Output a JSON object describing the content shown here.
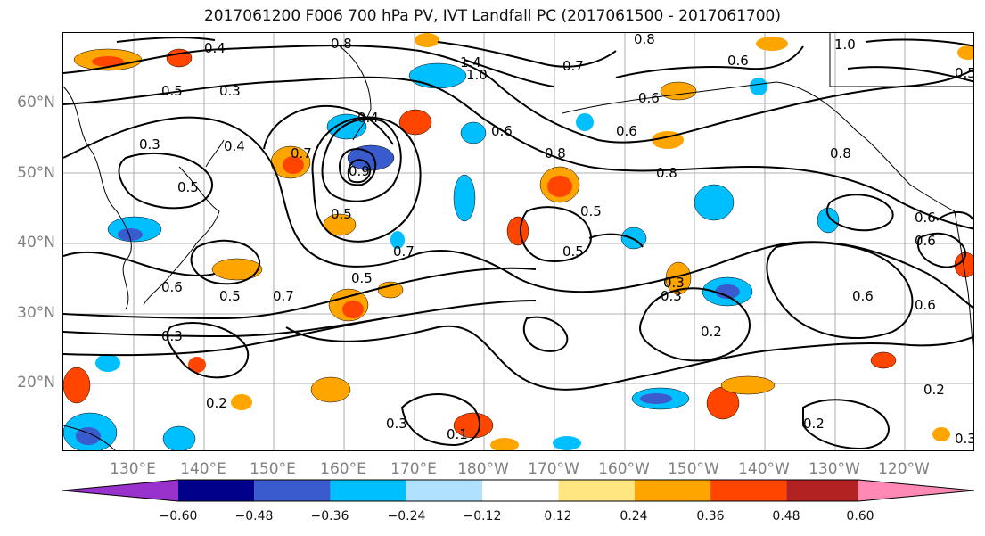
{
  "title": "2017061200 F006 700 hPa PV, IVT Landfall PC (2017061500 - 2017061700)",
  "axes": {
    "lat_labels": [
      "60°N",
      "50°N",
      "40°N",
      "30°N",
      "20°N"
    ],
    "lon_labels": [
      "130°E",
      "140°E",
      "150°E",
      "160°E",
      "170°E",
      "180°W",
      "170°W",
      "160°W",
      "150°W",
      "140°W",
      "130°W",
      "120°W"
    ]
  },
  "contour_labels": [
    "0.4",
    "0.8",
    "1.4",
    "1.0",
    "0.8",
    "0.6",
    "1.0",
    "0.5",
    "0.7",
    "0.3",
    "0.5",
    "0.4",
    "0.3",
    "0.5",
    "0.4",
    "0.7",
    "0.9",
    "0.6",
    "0.8",
    "0.8",
    "0.5",
    "0.8",
    "0.6",
    "0.6",
    "0.5",
    "0.5",
    "0.7",
    "0.5",
    "0.6",
    "0.5",
    "0.6",
    "0.7",
    "0.6",
    "0.3",
    "0.3",
    "0.2",
    "0.6",
    "0.6",
    "0.2",
    "0.3",
    "0.2",
    "0.3",
    "0.1",
    "0.2",
    "0.3"
  ],
  "colorbar": {
    "colors": [
      "#9932cc",
      "#00008b",
      "#3a5bcd",
      "#00bfff",
      "#b0e2ff",
      "#ffffff",
      "#ffe680",
      "#ffa500",
      "#ff4500",
      "#b22222",
      "#ff88b4"
    ],
    "tick_labels": [
      "−0.60",
      "−0.48",
      "−0.36",
      "−0.24",
      "−0.12",
      "0.12",
      "0.24",
      "0.36",
      "0.48",
      "0.60"
    ]
  }
}
